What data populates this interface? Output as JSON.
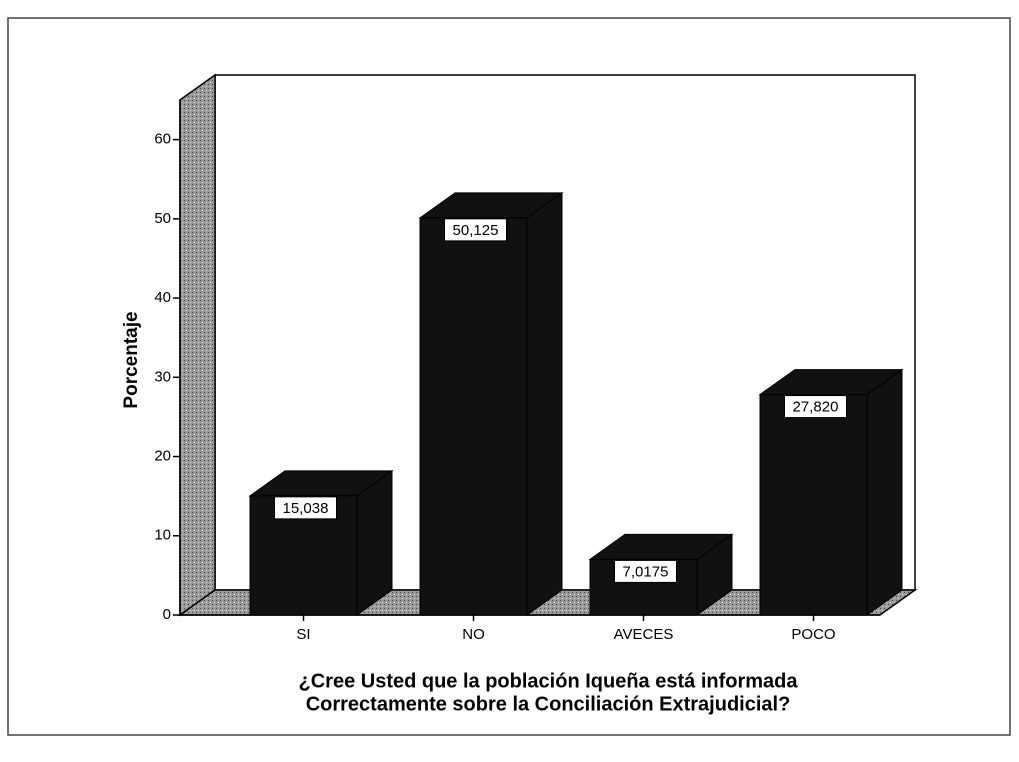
{
  "chart_data": {
    "type": "bar3d",
    "categories": [
      "SI",
      "NO",
      "AVECES",
      "POCO"
    ],
    "values": [
      15.038,
      50.125,
      7.0175,
      27.82
    ],
    "value_labels": [
      "15,038",
      "50,125",
      "7,0175",
      "27,820"
    ],
    "color": "#111111",
    "ylim": [
      0,
      65
    ],
    "yticks": [
      0,
      10,
      20,
      30,
      40,
      50,
      60
    ],
    "ylabel": "Porcentaje",
    "xlabel": [
      "¿Cree Usted que la población Iqueña está informada",
      "Correctamente sobre la Conciliación Extrajudicial?"
    ]
  }
}
